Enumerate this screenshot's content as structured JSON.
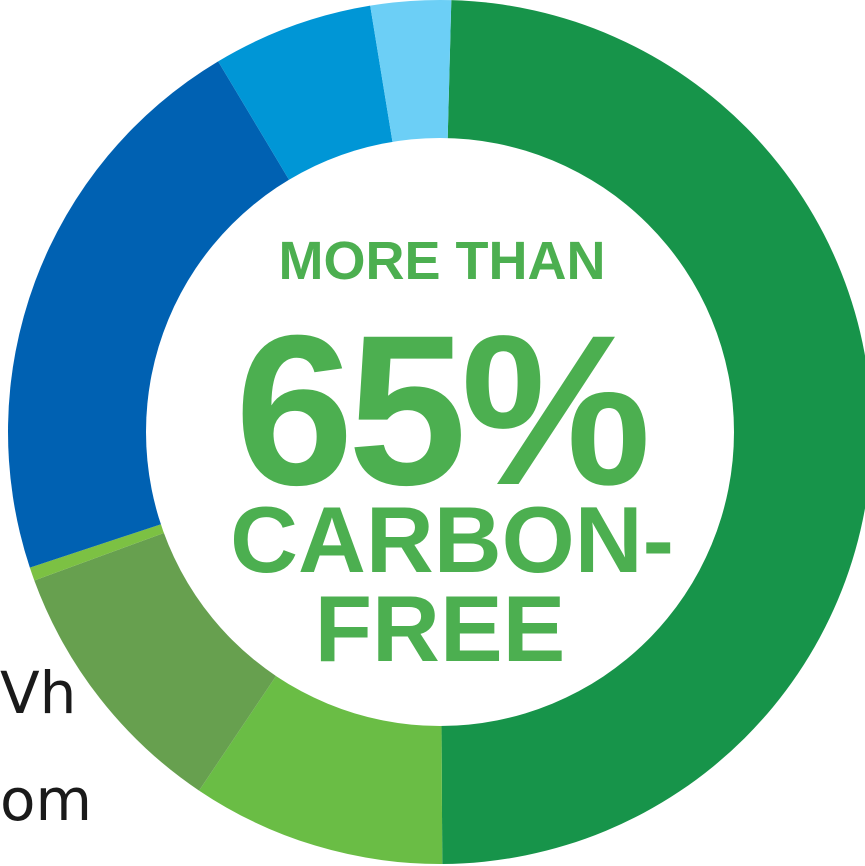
{
  "chart_data": {
    "type": "pie",
    "style": "donut",
    "legend": "none",
    "center_text": {
      "line1": "MORE THAN",
      "line2": "65%",
      "line3": "CARBON-",
      "line4": "FREE"
    },
    "slices": [
      {
        "value": 49.5,
        "color": "#17944a"
      },
      {
        "value": 9.5,
        "color": "#6abd45"
      },
      {
        "value": 10.0,
        "color": "#67a04f"
      },
      {
        "value": 0.5,
        "color": "#7cc143"
      },
      {
        "value": 21.5,
        "color": "#0061b2"
      },
      {
        "value": 6.0,
        "color": "#0096d6"
      },
      {
        "value": 3.0,
        "color": "#6ccff6"
      }
    ],
    "start_angle_deg": 1.5,
    "direction": "clockwise"
  },
  "background_text": {
    "line1": "Vh",
    "line2": "om"
  }
}
